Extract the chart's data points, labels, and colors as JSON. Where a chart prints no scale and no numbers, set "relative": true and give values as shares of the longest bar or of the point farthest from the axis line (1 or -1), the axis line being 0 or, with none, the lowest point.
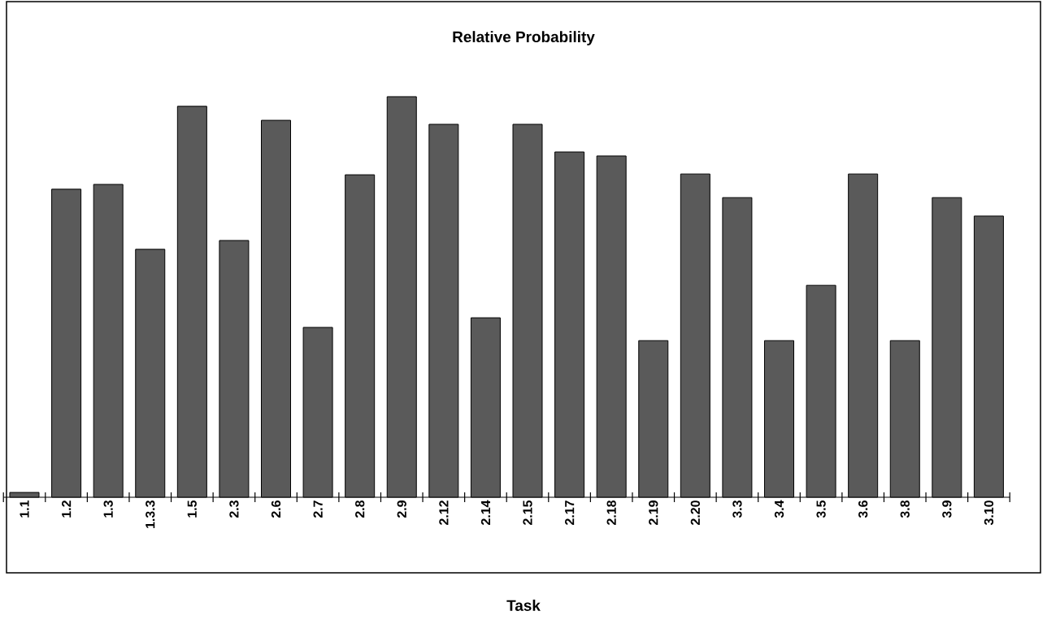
{
  "chart_data": {
    "type": "bar",
    "title": "Relative Probability",
    "xlabel": "Task",
    "relative": true,
    "color": "#5a5a5a",
    "categories": [
      "1.1",
      "1.2",
      "1.3",
      "1.3.3",
      "1.5",
      "2.3",
      "2.6",
      "2.7",
      "2.8",
      "2.9",
      "2.12",
      "2.14",
      "2.15",
      "2.17",
      "2.18",
      "2.19",
      "2.20",
      "3.3",
      "3.4",
      "3.5",
      "3.6",
      "3.8",
      "3.9",
      "3.10"
    ],
    "values": [
      0.012,
      0.769,
      0.781,
      0.619,
      0.976,
      0.641,
      0.941,
      0.424,
      0.805,
      1,
      0.931,
      0.448,
      0.931,
      0.862,
      0.852,
      0.391,
      0.807,
      0.748,
      0.391,
      0.529,
      0.807,
      0.391,
      0.748,
      0.702
    ]
  }
}
